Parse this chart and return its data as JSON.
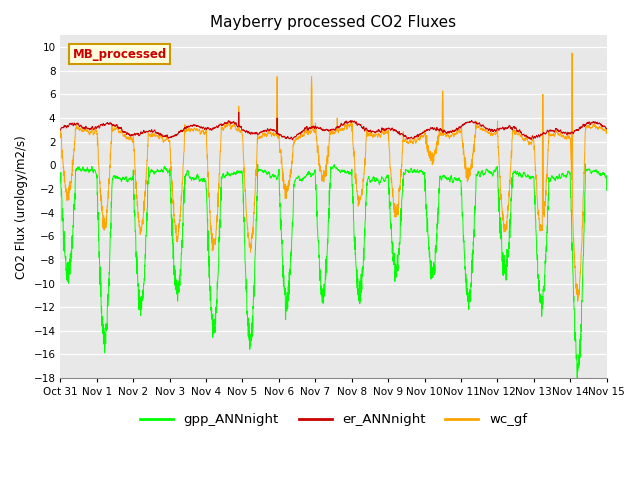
{
  "title": "Mayberry processed CO2 Fluxes",
  "ylabel": "CO2 Flux (urology/m2/s)",
  "ylim": [
    -18,
    11
  ],
  "yticks": [
    -18,
    -16,
    -14,
    -12,
    -10,
    -8,
    -6,
    -4,
    -2,
    0,
    2,
    4,
    6,
    8,
    10
  ],
  "xlim_days": [
    0,
    15
  ],
  "xtick_labels": [
    "Oct 31",
    "Nov 1",
    "Nov 2",
    "Nov 3",
    "Nov 4",
    "Nov 5",
    "Nov 6",
    "Nov 7",
    "Nov 8",
    "Nov 9",
    "Nov 10",
    "Nov 11",
    "Nov 12",
    "Nov 13",
    "Nov 14",
    "Nov 15"
  ],
  "gpp_color": "#00ff00",
  "er_color": "#cc0000",
  "wc_color": "#ffa500",
  "legend_label": "MB_processed",
  "legend_bg": "#ffffdd",
  "legend_border": "#cc9900",
  "bg_color": "#e8e8e8",
  "plot_bg": "#d8d8d8",
  "series_labels": [
    "gpp_ANNnight",
    "er_ANNnight",
    "wc_gf"
  ],
  "n_points": 2880,
  "seed": 12345
}
